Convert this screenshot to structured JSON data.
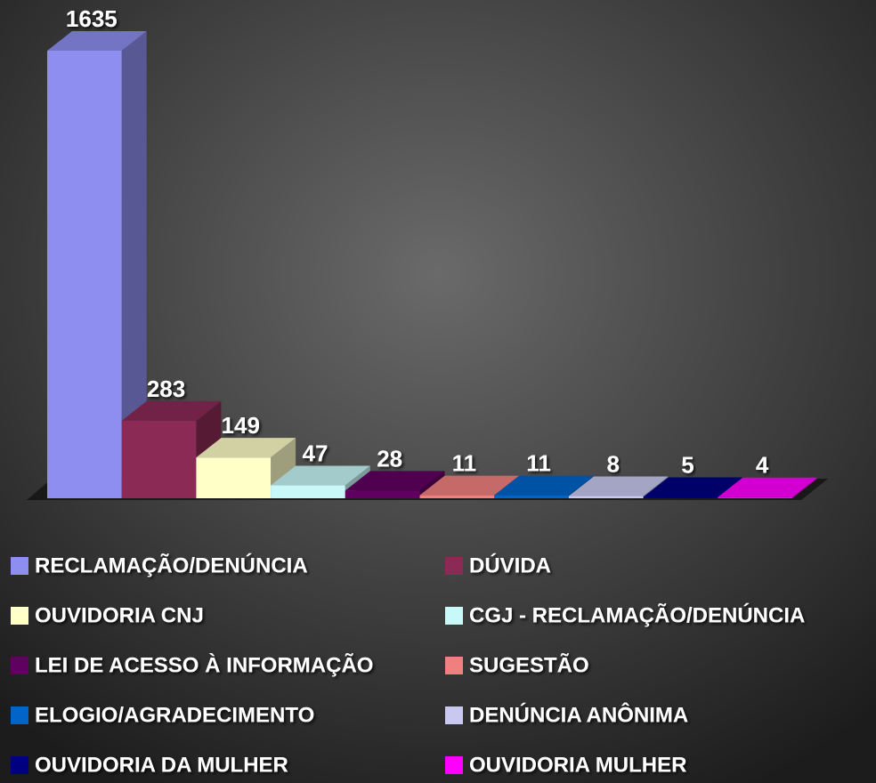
{
  "chart_data": {
    "type": "bar",
    "series": [
      {
        "name": "RECLAMAÇÃO/DENÚNCIA",
        "color": "#8e8ef0",
        "values": [
          1635
        ]
      },
      {
        "name": "DÚVIDA",
        "color": "#8b2a55",
        "values": [
          283
        ]
      },
      {
        "name": "OUVIDORIA CNJ",
        "color": "#ffffc8",
        "values": [
          149
        ]
      },
      {
        "name": "CGJ - RECLAMAÇÃO/DENÚNCIA",
        "color": "#c8f8f8",
        "values": [
          47
        ]
      },
      {
        "name": "LEI DE ACESSO À INFORMAÇÃO",
        "color": "#600060",
        "values": [
          28
        ]
      },
      {
        "name": "SUGESTÃO",
        "color": "#f08080",
        "values": [
          11
        ]
      },
      {
        "name": "ELOGIO/AGRADECIMENTO",
        "color": "#0064c8",
        "values": [
          11
        ]
      },
      {
        "name": "DENÚNCIA ANÔNIMA",
        "color": "#c8c8f0",
        "values": [
          8
        ]
      },
      {
        "name": "OUVIDORIA DA MULHER",
        "color": "#000080",
        "values": [
          5
        ]
      },
      {
        "name": "OUVIDORIA MULHER",
        "color": "#ff00ff",
        "values": [
          4
        ]
      }
    ]
  }
}
